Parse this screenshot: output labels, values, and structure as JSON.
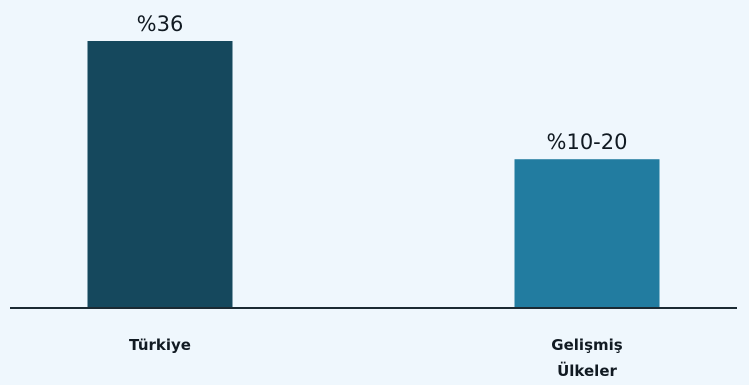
{
  "chart_data": {
    "type": "bar",
    "categories": [
      "Türkiye",
      "Gelişmiş Ülkeler"
    ],
    "category_lines": [
      [
        "Türkiye"
      ],
      [
        "Gelişmiş",
        "Ülkeler"
      ]
    ],
    "values": [
      36,
      20
    ],
    "value_labels": [
      "%36",
      "%10-20"
    ],
    "ylim": [
      0,
      40
    ],
    "grid": false,
    "legend": "none",
    "colors": [
      "#15485d",
      "#227ca0"
    ],
    "axis_color": "#1b2a33",
    "title": "",
    "xlabel": "",
    "ylabel": ""
  }
}
